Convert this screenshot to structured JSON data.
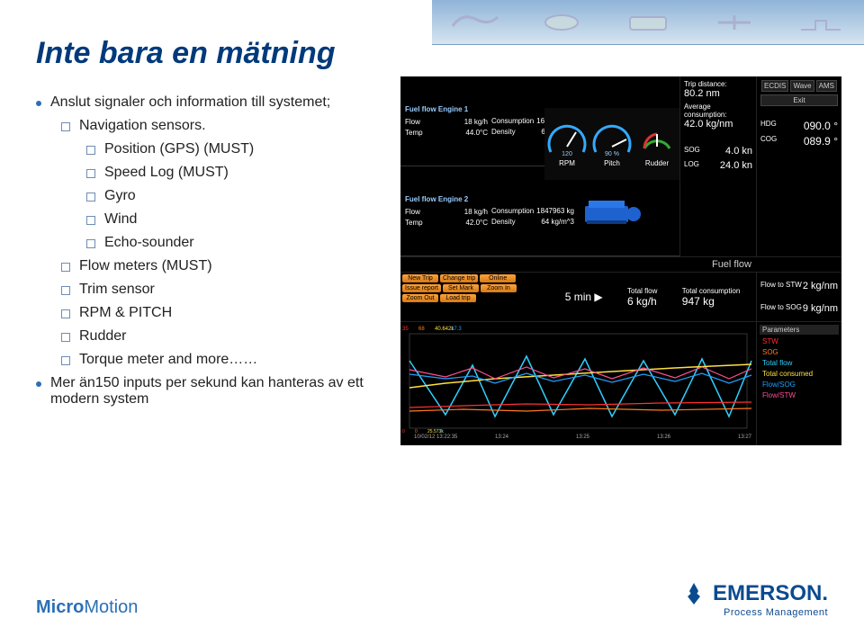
{
  "title": "Inte bara en mätning",
  "bullets": {
    "b1": "Anslut signaler och information till systemet;",
    "b2": "Navigation sensors.",
    "b3": "Position (GPS) (MUST)",
    "b4": "Speed Log (MUST)",
    "b5": "Gyro",
    "b6": "Wind",
    "b7": "Echo-sounder",
    "b8": "Flow meters (MUST)",
    "b9": "Trim sensor",
    "b10": "RPM & PITCH",
    "b11": "Rudder",
    "b12": "Torque meter and more……",
    "b13": "Mer än150 inputs per sekund kan hanteras av ett modern system"
  },
  "dashboard": {
    "engine1": {
      "title": "Fuel flow Engine 1",
      "flow_label": "Flow",
      "flow": "18 kg/h",
      "cons_label": "Consumption",
      "cons": "1612994 kg",
      "temp_label": "Temp",
      "temp": "44.0°C",
      "density_label": "Density",
      "density": "69 kg/m^3"
    },
    "engine2": {
      "title": "Fuel flow Engine 2",
      "flow_label": "Flow",
      "flow": "18 kg/h",
      "cons_label": "Consumption",
      "cons": "1847963 kg",
      "temp_label": "Temp",
      "temp": "42.0°C",
      "density_label": "Density",
      "density": "64 kg/m^3"
    },
    "gauges": {
      "rpm": {
        "label": "RPM",
        "value": 120,
        "min": 0,
        "max": 160,
        "display": "120"
      },
      "pitch": {
        "label": "Pitch",
        "value": 90,
        "min": 0,
        "max": 100,
        "display": "90 %"
      },
      "rudder": {
        "label": "Rudder",
        "value": 0,
        "min": -40,
        "max": 40
      }
    },
    "trip": {
      "dist_label": "Trip distance:",
      "dist": "80.2 nm",
      "avg_label": "Average consumption:",
      "avg": "42.0 kg/nm"
    },
    "nav_btns": {
      "ecdis": "ECDIS",
      "wave": "Wave",
      "ams": "AMS",
      "exit": "Exit"
    },
    "nav": {
      "hdg_label": "HDG",
      "hdg": "090.0 °",
      "cog_label": "COG",
      "cog": "089.9 °",
      "sog_label": "SOG",
      "sog": "4.0 kn",
      "log_label": "LOG",
      "log": "24.0 kn"
    },
    "side_buttons": [
      "New Trip",
      "Change trip",
      "Online",
      "Issue report",
      "Set Mark",
      "Zoom In",
      "Zoom Out",
      "Load trip"
    ],
    "mid": {
      "interval_val": "5 min",
      "interval_icon": "▶",
      "total_flow_label": "Total flow",
      "total_flow": "6 kg/h",
      "total_cons_label": "Total consumption",
      "total_cons": "947 kg"
    },
    "fuelflow_title": "Fuel flow",
    "flowright": {
      "stw_label": "Flow to STW",
      "stw": "2 kg/nm",
      "sog_label": "Flow to SOG",
      "sog": "9 kg/nm"
    },
    "params": {
      "header": "Parameters",
      "items": [
        {
          "label": "STW",
          "color": "#ff3030"
        },
        {
          "label": "SOG",
          "color": "#ff7a20"
        },
        {
          "label": "Total flow",
          "color": "#2fd0ff"
        },
        {
          "label": "Total consumed",
          "color": "#ffe040"
        },
        {
          "label": "Flow/SOG",
          "color": "#20a0ff"
        },
        {
          "label": "Flow/STW",
          "color": "#ff5090"
        }
      ]
    },
    "chart": {
      "background": "#000000",
      "axis_color": "#666666",
      "x_ticks": [
        "10/02/12 13:22:35",
        "13:24",
        "13:25",
        "13:26",
        "13:27"
      ],
      "y_left_labels": [
        "35",
        "68",
        "40.642k",
        "17.3"
      ],
      "y_left_colors": [
        "#ff3030",
        "#ff7a20",
        "#ffe040",
        "#20a0ff"
      ],
      "y_bottom_labels": [
        "0",
        "0",
        "25.573k",
        "0"
      ],
      "series": [
        {
          "color": "#2fd0ff",
          "width": 1.5,
          "points": [
            [
              0,
              30
            ],
            [
              40,
              90
            ],
            [
              70,
              35
            ],
            [
              95,
              92
            ],
            [
              130,
              25
            ],
            [
              160,
              90
            ],
            [
              195,
              28
            ],
            [
              225,
              92
            ],
            [
              260,
              30
            ],
            [
              295,
              90
            ],
            [
              325,
              28
            ],
            [
              355,
              92
            ],
            [
              380,
              30
            ]
          ]
        },
        {
          "color": "#ffe040",
          "width": 1.5,
          "points": [
            [
              0,
              60
            ],
            [
              40,
              55
            ],
            [
              95,
              50
            ],
            [
              160,
              46
            ],
            [
              225,
              42
            ],
            [
              295,
              38
            ],
            [
              380,
              34
            ]
          ]
        },
        {
          "color": "#ff3030",
          "width": 1.2,
          "points": [
            [
              0,
              82
            ],
            [
              60,
              80
            ],
            [
              130,
              78
            ],
            [
              200,
              79
            ],
            [
              280,
              77
            ],
            [
              380,
              76
            ]
          ]
        },
        {
          "color": "#ff7a20",
          "width": 1.2,
          "points": [
            [
              0,
              86
            ],
            [
              60,
              84
            ],
            [
              130,
              86
            ],
            [
              200,
              83
            ],
            [
              280,
              85
            ],
            [
              380,
              83
            ]
          ]
        },
        {
          "color": "#20a0ff",
          "width": 1.2,
          "points": [
            [
              0,
              45
            ],
            [
              40,
              50
            ],
            [
              70,
              47
            ],
            [
              95,
              55
            ],
            [
              130,
              44
            ],
            [
              160,
              53
            ],
            [
              195,
              46
            ],
            [
              225,
              54
            ],
            [
              260,
              45
            ],
            [
              295,
              53
            ],
            [
              325,
              44
            ],
            [
              355,
              55
            ],
            [
              380,
              46
            ]
          ]
        },
        {
          "color": "#ff5090",
          "width": 1.2,
          "points": [
            [
              0,
              40
            ],
            [
              40,
              48
            ],
            [
              70,
              38
            ],
            [
              95,
              50
            ],
            [
              130,
              37
            ],
            [
              160,
              49
            ],
            [
              195,
              39
            ],
            [
              225,
              50
            ],
            [
              260,
              38
            ],
            [
              295,
              49
            ],
            [
              325,
              37
            ],
            [
              355,
              50
            ],
            [
              380,
              39
            ]
          ]
        }
      ]
    }
  },
  "footer": {
    "micromotion_1": "Micro",
    "micromotion_2": "Motion",
    "emerson": "EMERSON.",
    "pm": "Process Management"
  },
  "colors": {
    "title": "#003a7b",
    "accent": "#2c6fb5",
    "engine_blue": "#1e62d0",
    "orange_btn": "#f08a24"
  }
}
